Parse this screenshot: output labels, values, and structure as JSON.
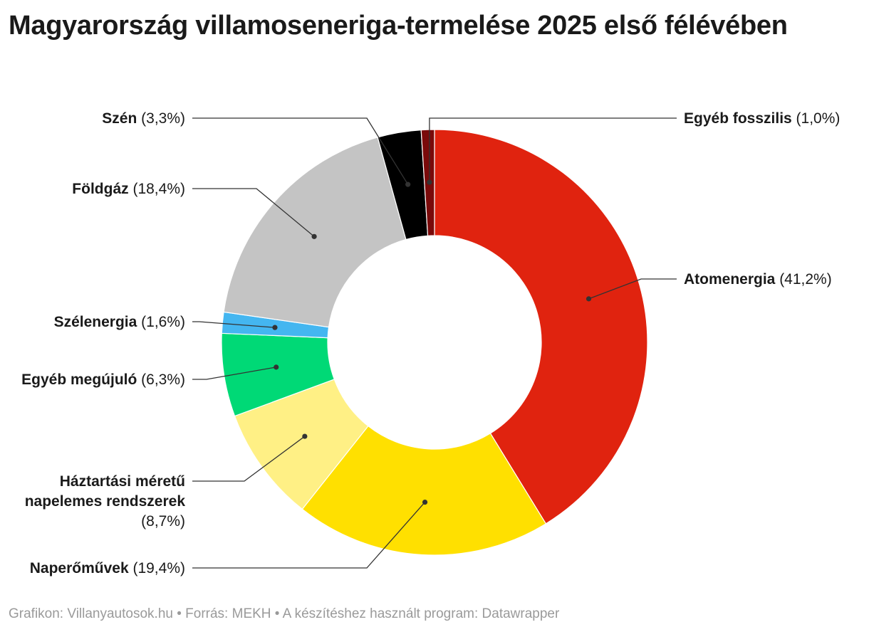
{
  "title": "Magyarország villamoseneriga-termelése 2025 első félévében",
  "footer": "Grafikon: Villanyautosok.hu • Forrás: MEKH • A készítéshez használt program: Datawrapper",
  "chart_data": {
    "type": "pie",
    "variant": "donut",
    "title": "Magyarország villamoseneriga-termelése 2025 első félévében",
    "unit": "%",
    "slices": [
      {
        "name": "Atomenergia",
        "value": 41.2,
        "value_label": "(41,2%)",
        "color": "#e0230f",
        "side": "right"
      },
      {
        "name": "Naperőművek",
        "value": 19.4,
        "value_label": "(19,4%)",
        "color": "#ffe000",
        "side": "left"
      },
      {
        "name": "Háztartási méretű napelemes rendszerek",
        "name_lines": [
          "Háztartási méretű",
          "napelemes rendszerek"
        ],
        "value": 8.7,
        "value_label": "(8,7%)",
        "color": "#fff085",
        "side": "left"
      },
      {
        "name": "Egyéb megújuló",
        "value": 6.3,
        "value_label": "(6,3%)",
        "color": "#00d976",
        "side": "left"
      },
      {
        "name": "Szélenergia",
        "value": 1.6,
        "value_label": "(1,6%)",
        "color": "#44b6f0",
        "side": "left"
      },
      {
        "name": "Földgáz",
        "value": 18.4,
        "value_label": "(18,4%)",
        "color": "#c4c4c4",
        "side": "left"
      },
      {
        "name": "Szén",
        "value": 3.3,
        "value_label": "(3,3%)",
        "color": "#000000",
        "side": "left"
      },
      {
        "name": "Egyéb fosszilis",
        "value": 1.0,
        "value_label": "(1,0%)",
        "color": "#7a0a0a",
        "side": "right"
      }
    ]
  }
}
